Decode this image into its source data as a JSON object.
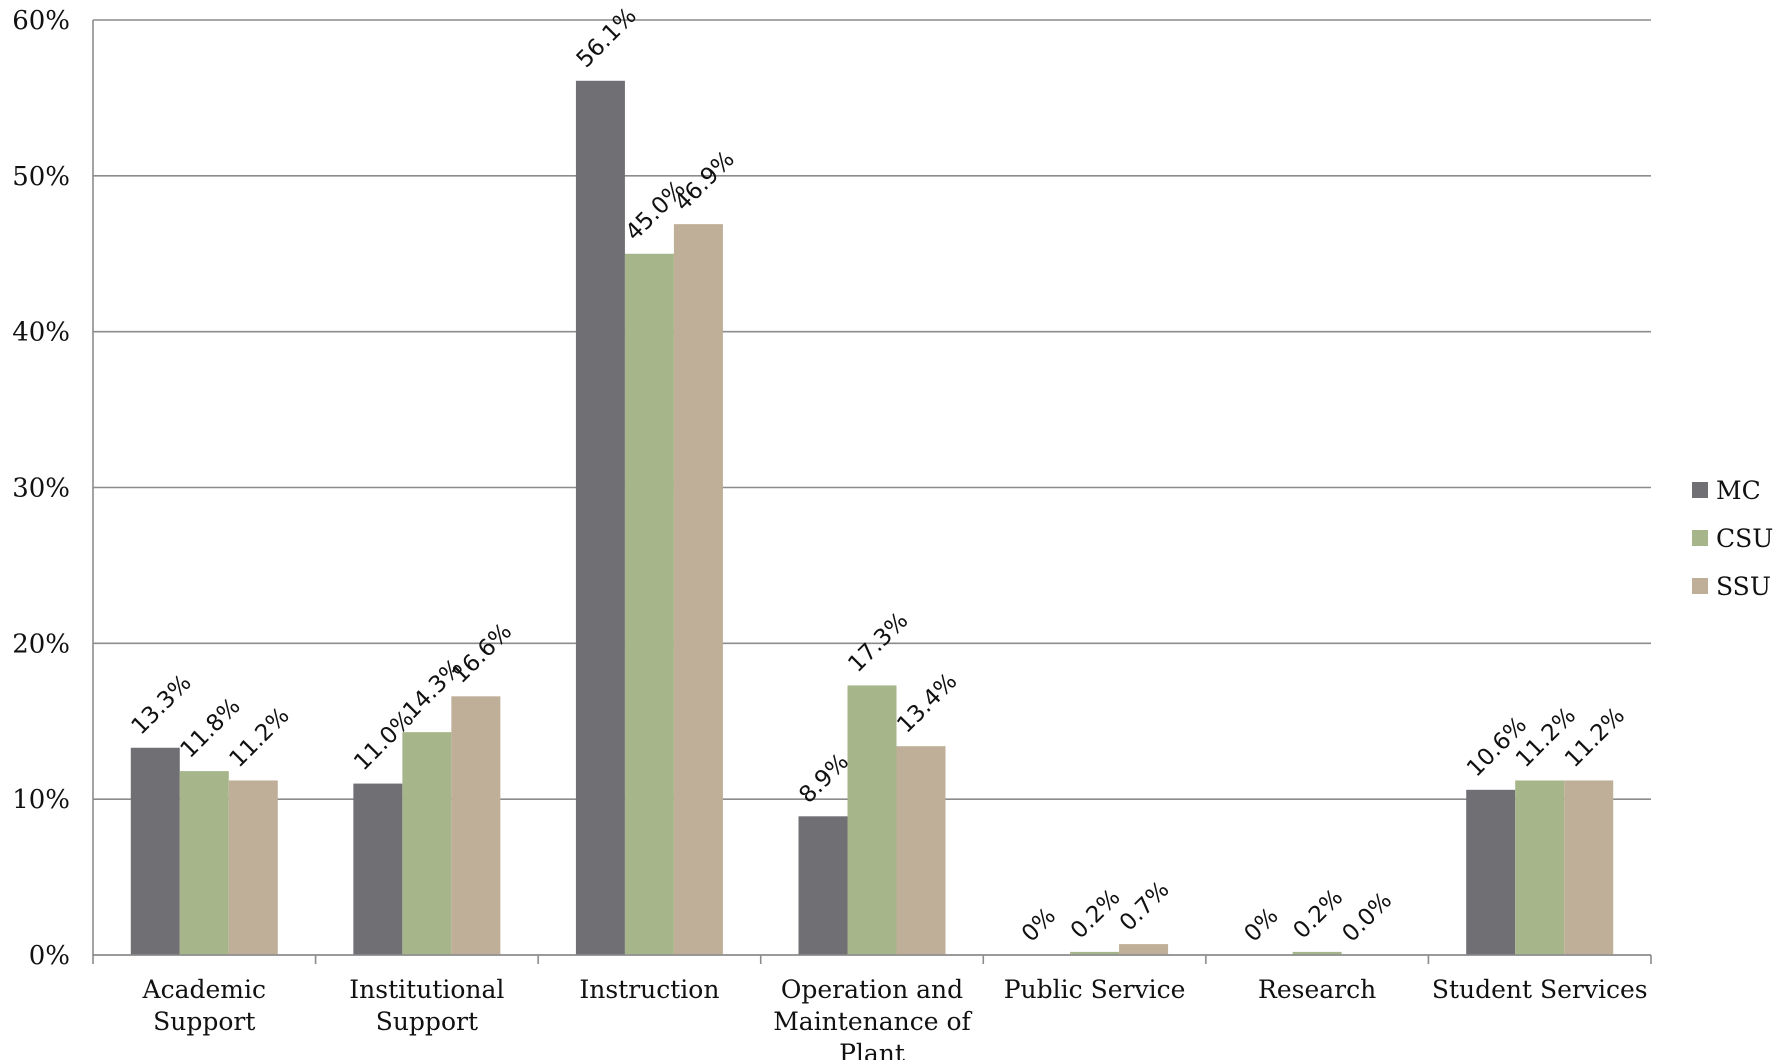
{
  "chart_data": {
    "type": "bar",
    "categories": [
      [
        "Academic",
        "Support"
      ],
      [
        "Institutional",
        "Support"
      ],
      [
        "Instruction"
      ],
      [
        "Operation and",
        "Maintenance of",
        "Plant"
      ],
      [
        "Public Service"
      ],
      [
        "Research"
      ],
      [
        "Student Services"
      ]
    ],
    "series": [
      {
        "name": "MC",
        "color": "#706f74",
        "values": [
          13.3,
          11.0,
          56.1,
          8.9,
          0,
          0,
          10.6
        ],
        "labels": [
          "13.3%",
          "11.0%",
          "56.1%",
          "8.9%",
          "0%",
          "0%",
          "10.6%"
        ]
      },
      {
        "name": "CSU",
        "color": "#a6b68a",
        "values": [
          11.8,
          14.3,
          45.0,
          17.3,
          0.2,
          0.2,
          11.2
        ],
        "labels": [
          "11.8%",
          "14.3%",
          "45.0%",
          "17.3%",
          "0.2%",
          "0.2%",
          "11.2%"
        ]
      },
      {
        "name": "SSU",
        "color": "#bfaf98",
        "values": [
          11.2,
          16.6,
          46.9,
          13.4,
          0.7,
          0.0,
          11.2
        ],
        "labels": [
          "11.2%",
          "16.6%",
          "46.9%",
          "13.4%",
          "0.7%",
          "0.0%",
          "11.2%"
        ]
      }
    ],
    "ylim": [
      0,
      60
    ],
    "yticks": [
      0,
      10,
      20,
      30,
      40,
      50,
      60
    ],
    "ytick_labels": [
      "0%",
      "10%",
      "20%",
      "30%",
      "40%",
      "50%",
      "60%"
    ],
    "grid": true,
    "legend_position": "right",
    "title": "",
    "xlabel": "",
    "ylabel": ""
  }
}
